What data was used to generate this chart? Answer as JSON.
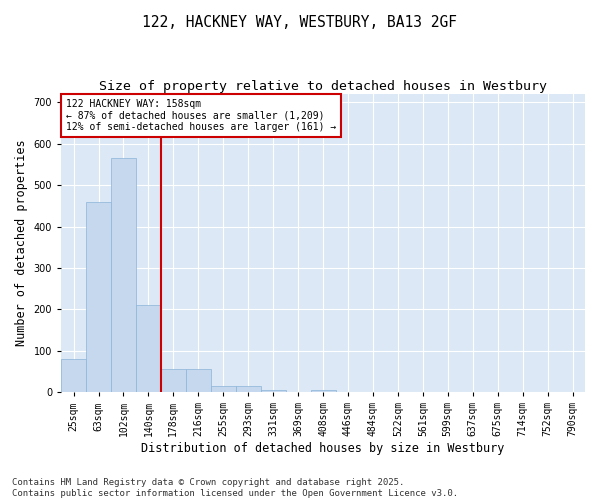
{
  "title1": "122, HACKNEY WAY, WESTBURY, BA13 2GF",
  "title2": "Size of property relative to detached houses in Westbury",
  "xlabel": "Distribution of detached houses by size in Westbury",
  "ylabel": "Number of detached properties",
  "categories": [
    "25sqm",
    "63sqm",
    "102sqm",
    "140sqm",
    "178sqm",
    "216sqm",
    "255sqm",
    "293sqm",
    "331sqm",
    "369sqm",
    "408sqm",
    "446sqm",
    "484sqm",
    "522sqm",
    "561sqm",
    "599sqm",
    "637sqm",
    "675sqm",
    "714sqm",
    "752sqm",
    "790sqm"
  ],
  "values": [
    80,
    460,
    565,
    210,
    55,
    55,
    15,
    15,
    5,
    0,
    5,
    0,
    0,
    0,
    0,
    0,
    0,
    0,
    0,
    0,
    0
  ],
  "bar_color": "#c5d8ee",
  "bar_edge_color": "#8ab4d8",
  "bar_width": 1.0,
  "vline_x": 3.5,
  "vline_color": "#cc0000",
  "annotation_text": "122 HACKNEY WAY: 158sqm\n← 87% of detached houses are smaller (1,209)\n12% of semi-detached houses are larger (161) →",
  "annotation_box_color": "#cc0000",
  "ylim": [
    0,
    720
  ],
  "yticks": [
    0,
    100,
    200,
    300,
    400,
    500,
    600,
    700
  ],
  "background_color": "#dce8f5",
  "fig_background": "#ffffff",
  "grid_color": "#ffffff",
  "footer": "Contains HM Land Registry data © Crown copyright and database right 2025.\nContains public sector information licensed under the Open Government Licence v3.0.",
  "title_fontsize": 10.5,
  "subtitle_fontsize": 9.5,
  "axis_label_fontsize": 8.5,
  "tick_fontsize": 7,
  "footer_fontsize": 6.5,
  "annot_fontsize": 7
}
